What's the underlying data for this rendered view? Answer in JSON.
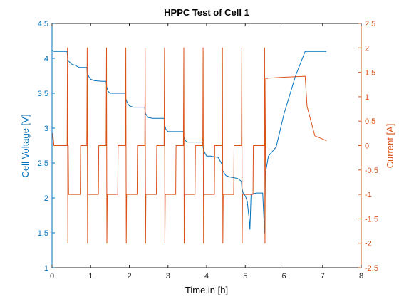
{
  "chart_data": {
    "type": "line",
    "title": "HPPC Test of Cell 1",
    "xlabel": "Time in [h]",
    "ylabel_left": "Cell Voltage [V]",
    "ylabel_right": "Current [A]",
    "xlim": [
      0,
      8
    ],
    "ylim_left": [
      1,
      4.5
    ],
    "ylim_right": [
      -2.5,
      2.5
    ],
    "x_ticks": [
      "0",
      "1",
      "2",
      "3",
      "4",
      "5",
      "6",
      "7",
      "8"
    ],
    "y_left_ticks": [
      "1",
      "1.5",
      "2",
      "2.5",
      "3",
      "3.5",
      "4",
      "4.5"
    ],
    "y_right_ticks": [
      "-2.5",
      "-2",
      "-1.5",
      "-1",
      "-0.5",
      "0",
      "0.5",
      "1",
      "1.5",
      "2",
      "2.5"
    ],
    "grid": false,
    "colors": {
      "voltage": "#0072bd",
      "current": "#d95319",
      "axes": "#262626"
    },
    "series": [
      {
        "axis": "left",
        "x": [
          0,
          0.05,
          0.1,
          0.3,
          0.39,
          0.4,
          0.41,
          0.45,
          0.5,
          0.6,
          0.7,
          0.82,
          0.9,
          0.91,
          0.95,
          1.0,
          1.1,
          1.3,
          1.4,
          1.41,
          1.45,
          1.5,
          1.6,
          1.8,
          1.9,
          1.91,
          1.95,
          2.0,
          2.1,
          2.3,
          2.4,
          2.41,
          2.45,
          2.5,
          2.6,
          2.8,
          2.9,
          2.91,
          2.95,
          3.0,
          3.1,
          3.3,
          3.4,
          3.41,
          3.45,
          3.5,
          3.6,
          3.8,
          3.9,
          3.91,
          3.95,
          4.0,
          4.1,
          4.3,
          4.4,
          4.41,
          4.45,
          4.5,
          4.6,
          4.8,
          4.9,
          4.91,
          4.95,
          5.0,
          5.05,
          5.1,
          5.12,
          5.15,
          5.2,
          5.3,
          5.45,
          5.5,
          5.52,
          5.6,
          5.8,
          6.0,
          6.3,
          6.55,
          7.1
        ],
        "y": [
          4.12,
          4.1,
          4.1,
          4.1,
          4.1,
          4.02,
          3.98,
          3.95,
          3.92,
          3.9,
          3.87,
          3.87,
          3.87,
          3.8,
          3.74,
          3.7,
          3.68,
          3.67,
          3.67,
          3.6,
          3.53,
          3.5,
          3.5,
          3.5,
          3.5,
          3.42,
          3.36,
          3.32,
          3.3,
          3.3,
          3.3,
          3.22,
          3.18,
          3.15,
          3.14,
          3.14,
          3.14,
          3.05,
          2.98,
          2.95,
          2.95,
          2.95,
          2.95,
          2.87,
          2.82,
          2.8,
          2.8,
          2.8,
          2.8,
          2.72,
          2.65,
          2.6,
          2.6,
          2.58,
          2.48,
          2.4,
          2.36,
          2.32,
          2.3,
          2.28,
          2.24,
          2.15,
          2.06,
          2.03,
          1.95,
          1.7,
          1.55,
          2.05,
          2.06,
          2.07,
          2.07,
          1.5,
          2.35,
          2.6,
          2.73,
          3.2,
          3.75,
          4.1,
          4.1
        ],
        "name": ""
      },
      {
        "axis": "right",
        "x": [
          0,
          0.02,
          0.05,
          0.07,
          0.39,
          0.4,
          0.41,
          0.42,
          0.43,
          0.44,
          0.73,
          0.74,
          0.82,
          0.9,
          0.91,
          0.92,
          0.93,
          1.2,
          1.21,
          1.4,
          1.41,
          1.42,
          1.43,
          1.7,
          1.71,
          1.9,
          1.91,
          1.92,
          1.93,
          2.2,
          2.21,
          2.4,
          2.41,
          2.42,
          2.43,
          2.7,
          2.71,
          2.9,
          2.91,
          2.92,
          2.93,
          3.2,
          3.21,
          3.4,
          3.41,
          3.42,
          3.43,
          3.7,
          3.71,
          3.9,
          3.91,
          3.92,
          3.93,
          4.2,
          4.21,
          4.4,
          4.41,
          4.42,
          4.43,
          4.7,
          4.71,
          4.9,
          4.91,
          4.92,
          4.93,
          5.2,
          5.21,
          5.49,
          5.5,
          5.51,
          5.52,
          5.53,
          5.6,
          6.0,
          6.55,
          6.6,
          6.8,
          7.1
        ],
        "y": [
          0.1,
          0.25,
          0.0,
          0.0,
          0.0,
          2.0,
          -2.0,
          0.0,
          -1.0,
          -1.0,
          -1.0,
          0.0,
          0.0,
          0.0,
          2.0,
          -2.0,
          -1.0,
          -1.0,
          0.0,
          0.0,
          2.0,
          -2.0,
          -1.0,
          -1.0,
          0.0,
          0.0,
          2.0,
          -2.0,
          -1.0,
          -1.0,
          0.0,
          0.0,
          2.0,
          -2.0,
          -1.0,
          -1.0,
          0.0,
          0.0,
          2.0,
          -2.0,
          -1.0,
          -1.0,
          0.0,
          0.0,
          2.0,
          -2.0,
          -1.0,
          -1.0,
          0.0,
          0.0,
          2.0,
          -2.0,
          -1.0,
          -1.0,
          0.0,
          0.0,
          2.0,
          -2.0,
          -1.0,
          -1.0,
          0.0,
          0.0,
          2.0,
          -2.0,
          -1.0,
          -1.0,
          0.0,
          0.0,
          2.0,
          -2.0,
          0.0,
          1.37,
          1.38,
          1.4,
          1.42,
          0.8,
          0.2,
          0.1
        ],
        "name": ""
      }
    ]
  }
}
